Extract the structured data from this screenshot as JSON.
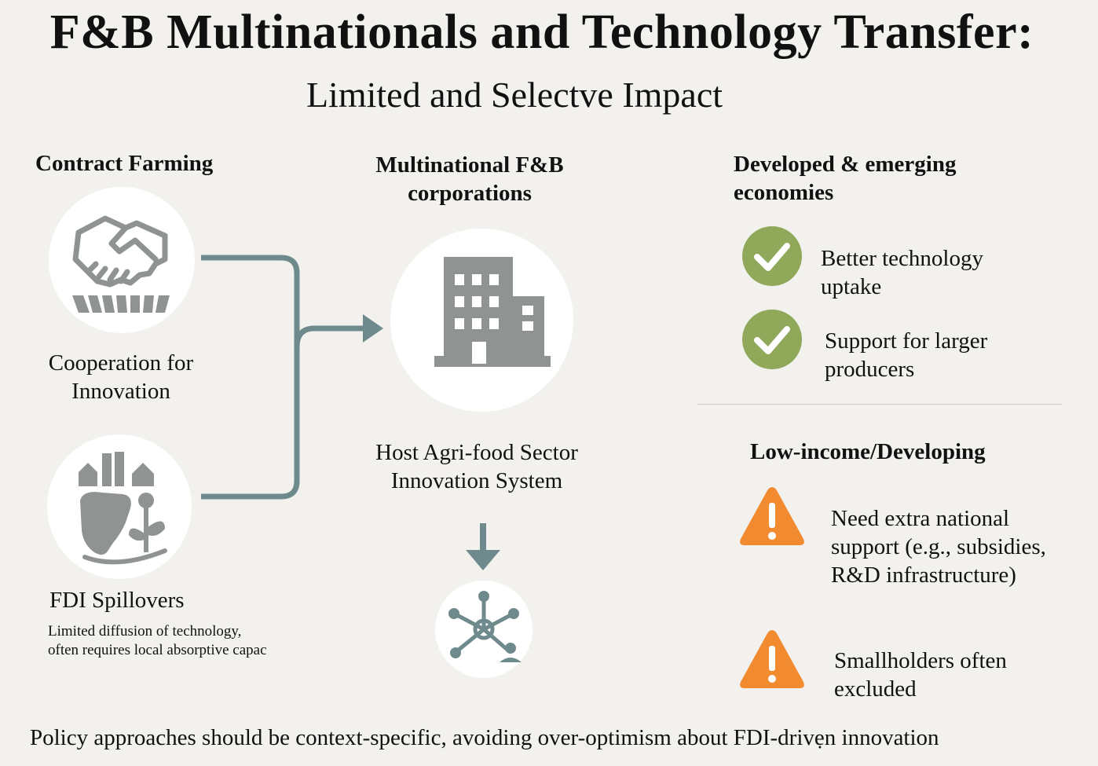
{
  "header": {
    "title": "F&B Multinationals and Technology Transfer:",
    "subtitle": "Limited and Selectve Impact"
  },
  "left": {
    "heading": "Contract Farming",
    "contract_label_line1": "Cooperation for",
    "contract_label_line2": "Innovation",
    "fdi_label": "FDI Spillovers",
    "fdi_note_line1": "Limited diffusion of technology,",
    "fdi_note_line2": "often requires local absorptive capac"
  },
  "center": {
    "heading_line1": "Multinational F&B",
    "heading_line2": "corporations",
    "system_line1": "Host Agri-food Sector",
    "system_line2": "Innovation System"
  },
  "right": {
    "developed_heading_line1": "Developed & emerging",
    "developed_heading_line2": "economies",
    "developed_items": [
      {
        "line1": "Better technology",
        "line2": "uptake"
      },
      {
        "line1": "Support for larger",
        "line2": "producers"
      }
    ],
    "low_heading": "Low-income/Developing",
    "low_items": [
      {
        "line1": "Need extra national",
        "line2": "support (e.g., subsidies,",
        "line3": "R&D infrastructure)"
      },
      {
        "line1": "Smallholders often",
        "line2": "excluded"
      }
    ]
  },
  "footer": {
    "text": "Policy approaches should be context-specific, avoiding over-optimism about FDI-drivẹn innovation"
  },
  "colors": {
    "background": "#f2f1ee",
    "connector": "#6f8a8c",
    "icon_gray": "#8f9493",
    "check_green": "#8fa85a",
    "warning_orange": "#f28a30"
  }
}
